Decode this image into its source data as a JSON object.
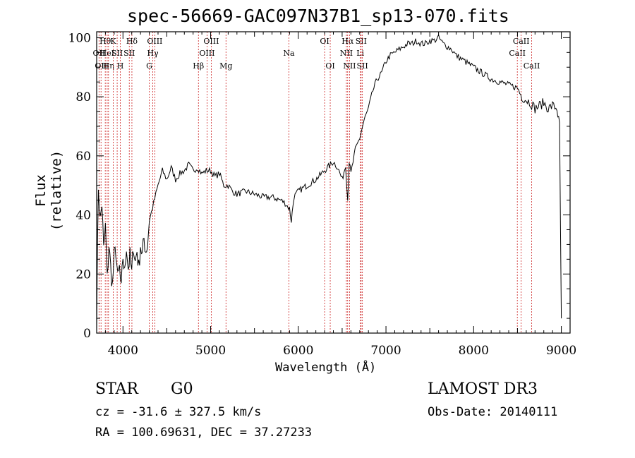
{
  "chart_data": {
    "type": "line",
    "title": "spec-56669-GAC097N37B1_sp13-070.fits",
    "xlabel": "Wavelength (Å)",
    "ylabel": "Flux (relative)",
    "xlim": [
      3700,
      9100
    ],
    "ylim": [
      0,
      102
    ],
    "xticks": [
      4000,
      5000,
      6000,
      7000,
      8000,
      9000
    ],
    "yticks": [
      0,
      20,
      40,
      60,
      80,
      100
    ],
    "grid": false,
    "series": [
      {
        "name": "flux",
        "x": [
          3700,
          3720,
          3740,
          3760,
          3780,
          3800,
          3820,
          3840,
          3860,
          3880,
          3900,
          3920,
          3940,
          3960,
          3980,
          4000,
          4020,
          4040,
          4060,
          4080,
          4100,
          4120,
          4140,
          4160,
          4180,
          4200,
          4220,
          4240,
          4260,
          4280,
          4300,
          4350,
          4400,
          4450,
          4500,
          4550,
          4600,
          4650,
          4700,
          4750,
          4800,
          4850,
          4900,
          4950,
          5000,
          5050,
          5100,
          5150,
          5200,
          5250,
          5300,
          5400,
          5500,
          5600,
          5700,
          5800,
          5850,
          5900,
          5920,
          5950,
          6000,
          6100,
          6200,
          6300,
          6400,
          6450,
          6500,
          6540,
          6563,
          6580,
          6600,
          6650,
          6700,
          6750,
          6800,
          6850,
          6900,
          6950,
          7000,
          7050,
          7100,
          7150,
          7200,
          7250,
          7300,
          7350,
          7400,
          7450,
          7500,
          7550,
          7600,
          7650,
          7700,
          7750,
          7800,
          7850,
          7900,
          7950,
          8000,
          8100,
          8200,
          8300,
          8400,
          8500,
          8550,
          8600,
          8650,
          8700,
          8750,
          8800,
          8850,
          8900,
          8950,
          8980,
          9000
        ],
        "y": [
          5,
          50,
          38,
          44,
          28,
          36,
          18,
          30,
          22,
          16,
          26,
          28,
          18,
          22,
          14,
          26,
          20,
          30,
          22,
          26,
          20,
          30,
          24,
          28,
          22,
          30,
          26,
          32,
          28,
          30,
          38,
          44,
          50,
          55,
          52,
          56,
          52,
          54,
          55,
          57,
          55,
          56,
          54,
          55,
          55,
          53,
          54,
          50,
          50,
          48,
          47,
          48,
          47,
          46,
          46,
          45,
          44,
          42,
          38,
          46,
          48,
          50,
          52,
          55,
          58,
          56,
          52,
          57,
          45,
          58,
          54,
          62,
          66,
          72,
          76,
          82,
          86,
          88,
          92,
          94,
          95,
          96,
          97,
          98,
          98,
          99,
          98,
          98,
          99,
          99,
          100,
          98,
          97,
          96,
          94,
          93,
          92,
          91,
          90,
          88,
          86,
          85,
          84,
          83,
          80,
          79,
          78,
          76,
          77,
          78,
          76,
          77,
          76,
          70,
          5
        ]
      }
    ],
    "line_annotations": [
      {
        "wavelength": 3727,
        "label": "OII",
        "row": 2
      },
      {
        "wavelength": 3750,
        "label": "OII",
        "row": 3
      },
      {
        "wavelength": 3798,
        "label": "Hθ",
        "row": 1
      },
      {
        "wavelength": 3820,
        "label": "HeI",
        "row": 2
      },
      {
        "wavelength": 3835,
        "label": "Hη",
        "row": 3
      },
      {
        "wavelength": 3889,
        "label": "K",
        "row": 1
      },
      {
        "wavelength": 3934,
        "label": "SII",
        "row": 2
      },
      {
        "wavelength": 3970,
        "label": "H",
        "row": 3
      },
      {
        "wavelength": 4072,
        "label": "SII",
        "row": 2
      },
      {
        "wavelength": 4102,
        "label": "Hδ",
        "row": 1
      },
      {
        "wavelength": 4300,
        "label": "G",
        "row": 3
      },
      {
        "wavelength": 4340,
        "label": "Hγ",
        "row": 2
      },
      {
        "wavelength": 4363,
        "label": "OIII",
        "row": 1
      },
      {
        "wavelength": 4861,
        "label": "Hβ",
        "row": 3
      },
      {
        "wavelength": 4959,
        "label": "OIII",
        "row": 2
      },
      {
        "wavelength": 5007,
        "label": "OIII",
        "row": 1
      },
      {
        "wavelength": 5175,
        "label": "Mg",
        "row": 3
      },
      {
        "wavelength": 5893,
        "label": "Na",
        "row": 2
      },
      {
        "wavelength": 6300,
        "label": "OI",
        "row": 1
      },
      {
        "wavelength": 6364,
        "label": "OI",
        "row": 3
      },
      {
        "wavelength": 6548,
        "label": "NII",
        "row": 2
      },
      {
        "wavelength": 6563,
        "label": "Hα",
        "row": 1
      },
      {
        "wavelength": 6584,
        "label": "NII",
        "row": 3
      },
      {
        "wavelength": 6707,
        "label": "Li",
        "row": 2
      },
      {
        "wavelength": 6717,
        "label": "SII",
        "row": 1
      },
      {
        "wavelength": 6731,
        "label": "SII",
        "row": 3
      },
      {
        "wavelength": 8498,
        "label": "CaII",
        "row": 2
      },
      {
        "wavelength": 8542,
        "label": "CaII",
        "row": 1
      },
      {
        "wavelength": 8662,
        "label": "CaII",
        "row": 3
      }
    ],
    "annotation_color": "#cc2222"
  },
  "info": {
    "object_class": "STAR",
    "subclass": "G0",
    "survey": "LAMOST DR3",
    "velocity": "cz = -31.6 ± 327.5 km/s",
    "obs_date": "Obs-Date: 20140111",
    "coords": "RA = 100.69631, DEC =  37.27233"
  }
}
